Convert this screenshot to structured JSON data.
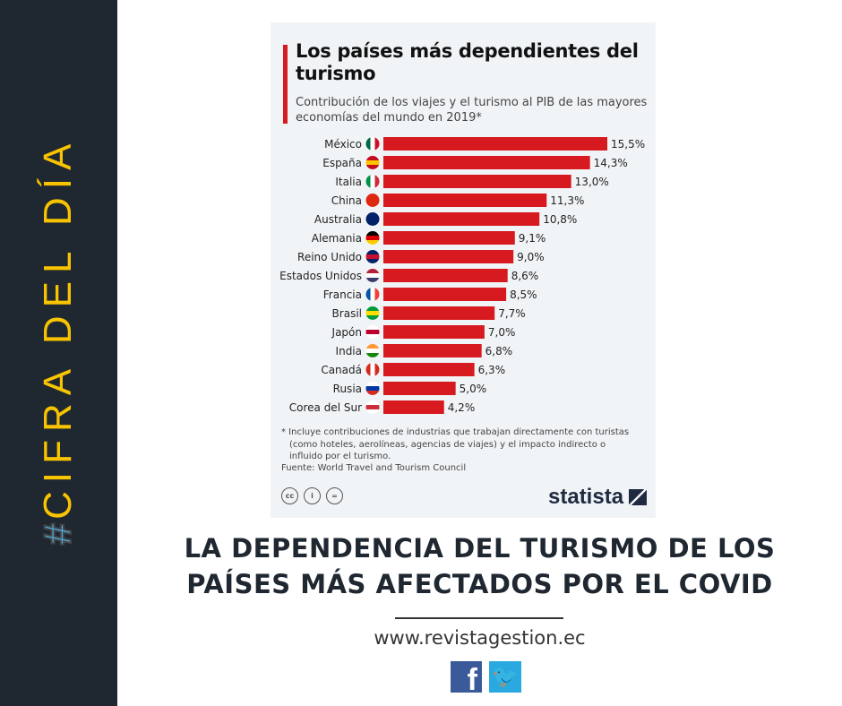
{
  "sidebar": {
    "hash": "#",
    "text": "CIFRA DEL DÍA",
    "hash_color": "#4daee8",
    "text_color": "#f8c300"
  },
  "chart_data": {
    "type": "bar",
    "orientation": "horizontal",
    "title": "Los países más dependientes del turismo",
    "subtitle": "Contribución de los viajes y el turismo al PIB de las mayores economías del mundo en 2019*",
    "categories": [
      "México",
      "España",
      "Italia",
      "China",
      "Australia",
      "Alemania",
      "Reino Unido",
      "Estados Unidos",
      "Francia",
      "Brasil",
      "Japón",
      "India",
      "Canadá",
      "Rusia",
      "Corea del Sur"
    ],
    "flags": [
      "flag-mexico-icon",
      "flag-spain-icon",
      "flag-italy-icon",
      "flag-china-icon",
      "flag-australia-icon",
      "flag-germany-icon",
      "flag-uk-icon",
      "flag-usa-icon",
      "flag-france-icon",
      "flag-brazil-icon",
      "flag-japan-icon",
      "flag-india-icon",
      "flag-canada-icon",
      "flag-russia-icon",
      "flag-south-korea-icon"
    ],
    "values": [
      15.5,
      14.3,
      13.0,
      11.3,
      10.8,
      9.1,
      9.0,
      8.6,
      8.5,
      7.7,
      7.0,
      6.8,
      6.3,
      5.0,
      4.2
    ],
    "value_labels": [
      "15,5%",
      "14,3%",
      "13,0%",
      "11,3%",
      "10,8%",
      "9,1%",
      "9,0%",
      "8,6%",
      "8,5%",
      "7,7%",
      "7,0%",
      "6,8%",
      "6,3%",
      "5,0%",
      "4,2%"
    ],
    "xlim": [
      0,
      15.5
    ],
    "bar_color": "#d71920",
    "grid": false
  },
  "card": {
    "title": "Los países más dependientes del turismo",
    "subtitle": "Contribución de los viajes y el turismo al PIB de las mayores economías del mundo en 2019*",
    "note_line1": "* Incluye contribuciones de industrias que trabajan directamente con turistas",
    "note_line2": "(como hoteles, aerolíneas, agencias de viajes) y el impacto indirecto o",
    "note_line3": "influido por el turismo.",
    "source": "Fuente: World Travel and Tourism Council",
    "cc_icons": [
      "cc",
      "i",
      "="
    ],
    "brand": "statista"
  },
  "headline": {
    "line1": "LA DEPENDENCIA DEL TURISMO DE LOS",
    "line2": "PAÍSES MÁS AFECTADOS POR EL COVID"
  },
  "footer": {
    "url": "www.revistagestion.ec",
    "facebook": "f",
    "twitter": "🐦"
  }
}
